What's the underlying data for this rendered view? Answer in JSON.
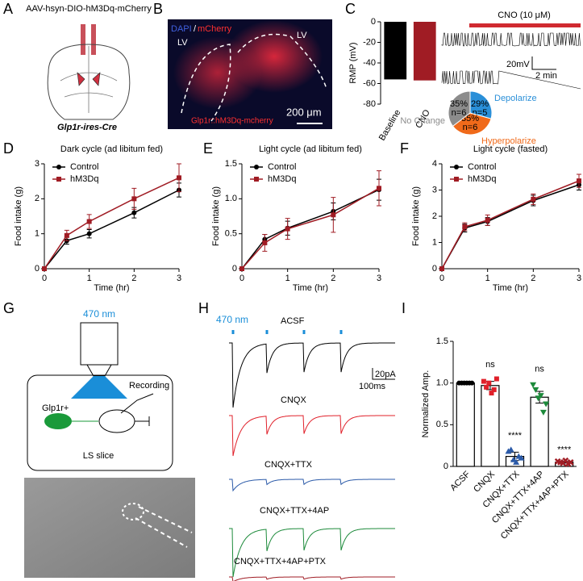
{
  "panel_labels": [
    "A",
    "B",
    "C",
    "D",
    "E",
    "F",
    "G",
    "H",
    "I"
  ],
  "panel_a": {
    "virus": "AAV-hsyn-DIO-hM3Dq-mCherry",
    "mouse": "Glp1r-ires-Cre"
  },
  "panel_b": {
    "dapi": "DAPI",
    "slash": "/",
    "mcherry": "mCherry",
    "lv_left": "LV",
    "lv_right": "LV",
    "caption": "Glp1r::hM3Dq-mcherry",
    "scale": "200 μm"
  },
  "panel_c": {
    "cno": "CNO (10 μM)",
    "scale_v": "20mV",
    "scale_t": "2 min"
  },
  "panel_g": {
    "light": "470 nm",
    "recording": "Recording",
    "cell": "Glp1r+",
    "slice": "LS slice"
  },
  "panel_h": {
    "light": "470 nm",
    "traces": [
      "ACSF",
      "CNQX",
      "CNQX+TTX",
      "CNQX+TTX+4AP",
      "CNQX+TTX+4AP+PTX"
    ],
    "scale_i": "20pA",
    "scale_t": "100ms"
  },
  "chart_data": [
    {
      "type": "bar",
      "ylabel": "RMP (mV)",
      "categories": [
        "Baseline",
        "CNO"
      ],
      "values": [
        -56,
        -57
      ],
      "colors": [
        "#000000",
        "#a01c24"
      ],
      "ylim": [
        -80,
        0
      ],
      "yticks": [
        0,
        -20,
        -40,
        -60,
        -80
      ]
    },
    {
      "type": "pie",
      "categories": [
        "Depolarize",
        "Hyperpolarize",
        "No Change"
      ],
      "values": [
        29,
        35,
        35
      ],
      "value_labels": [
        "29%",
        "35%",
        "35%"
      ],
      "n_labels": [
        "n=5",
        "n=6",
        "n=6"
      ],
      "colors": [
        "#2a8fd8",
        "#f06a1a",
        "#8c8c8c"
      ]
    },
    {
      "type": "line",
      "title": "Dark cycle (ad libitum fed)",
      "xlabel": "Time (hr)",
      "ylabel": "Food intake (g)",
      "x": [
        0,
        0.5,
        1,
        2,
        3
      ],
      "xlim": [
        0,
        3
      ],
      "xticks": [
        0,
        1,
        2,
        3
      ],
      "ylim": [
        0,
        3
      ],
      "yticks": [
        0,
        1,
        2,
        3
      ],
      "series": [
        {
          "name": "Control",
          "color": "#000000",
          "values": [
            0,
            0.8,
            1.0,
            1.6,
            2.25
          ],
          "errors": [
            0,
            0.1,
            0.12,
            0.15,
            0.2
          ]
        },
        {
          "name": "hM3Dq",
          "color": "#a01c24",
          "values": [
            0,
            0.95,
            1.35,
            2.0,
            2.6
          ],
          "errors": [
            0,
            0.15,
            0.2,
            0.3,
            0.4
          ]
        }
      ]
    },
    {
      "type": "line",
      "title": "Light cycle (ad libitum fed)",
      "xlabel": "Time (hr)",
      "ylabel": "Food intake (g)",
      "x": [
        0,
        0.5,
        1,
        2,
        3
      ],
      "xlim": [
        0,
        3
      ],
      "xticks": [
        0,
        1,
        2,
        3
      ],
      "ylim": [
        0,
        1.5
      ],
      "yticks": [
        0,
        0.5,
        {
          "value": 1,
          "label": "1.0"
        },
        1.5
      ],
      "series": [
        {
          "name": "Control",
          "color": "#000000",
          "values": [
            0,
            0.42,
            0.58,
            0.82,
            1.13
          ],
          "errors": [
            0,
            0.07,
            0.1,
            0.12,
            0.15
          ]
        },
        {
          "name": "hM3Dq",
          "color": "#a01c24",
          "values": [
            0,
            0.37,
            0.57,
            0.77,
            1.15
          ],
          "errors": [
            0,
            0.12,
            0.15,
            0.25,
            0.25
          ]
        }
      ]
    },
    {
      "type": "line",
      "title": "Light cycle (fasted)",
      "xlabel": "Time (hr)",
      "ylabel": "Food intake (g)",
      "x": [
        0,
        0.5,
        1,
        2,
        3
      ],
      "xlim": [
        0,
        3
      ],
      "xticks": [
        0,
        1,
        2,
        3
      ],
      "ylim": [
        0,
        4
      ],
      "yticks": [
        0,
        1,
        2,
        3,
        4
      ],
      "series": [
        {
          "name": "Control",
          "color": "#000000",
          "values": [
            0,
            1.55,
            1.8,
            2.6,
            3.2
          ],
          "errors": [
            0,
            0.15,
            0.15,
            0.2,
            0.2
          ]
        },
        {
          "name": "hM3Dq",
          "color": "#a01c24",
          "values": [
            0,
            1.6,
            1.85,
            2.65,
            3.35
          ],
          "errors": [
            0,
            0.15,
            0.2,
            0.2,
            0.25
          ]
        }
      ]
    },
    {
      "type": "dotbar",
      "ylabel": "Normalized Amp.",
      "categories": [
        "ACSF",
        "CNQX",
        "CNQX+TTX",
        "CNQX+TTX+4AP",
        "CNQX+TTX+4AP+PTX"
      ],
      "values": [
        1.0,
        0.97,
        0.12,
        0.83,
        0.05
      ],
      "errors": [
        0,
        0.05,
        0.05,
        0.07,
        0.01
      ],
      "annotations": [
        null,
        "ns",
        "****",
        "ns",
        "****"
      ],
      "points": [
        [
          1,
          1,
          1,
          1,
          1,
          1
        ],
        [
          1.02,
          0.95,
          1.0,
          0.88,
          0.92,
          1.05
        ],
        [
          0.18,
          0.2,
          0.08,
          0.05,
          0.12,
          0.1
        ],
        [
          0.98,
          0.92,
          0.82,
          0.85,
          0.65,
          0.75
        ],
        [
          0.06,
          0.05,
          0.04,
          0.07,
          0.03,
          0.05
        ]
      ],
      "colors": [
        "#000000",
        "#e0202a",
        "#2b5aa8",
        "#1c8a3a",
        "#a01c24"
      ],
      "ylim": [
        0,
        1.5
      ],
      "yticks": [
        0,
        0.5,
        {
          "value": 1,
          "label": "1.0"
        },
        1.5
      ]
    }
  ]
}
